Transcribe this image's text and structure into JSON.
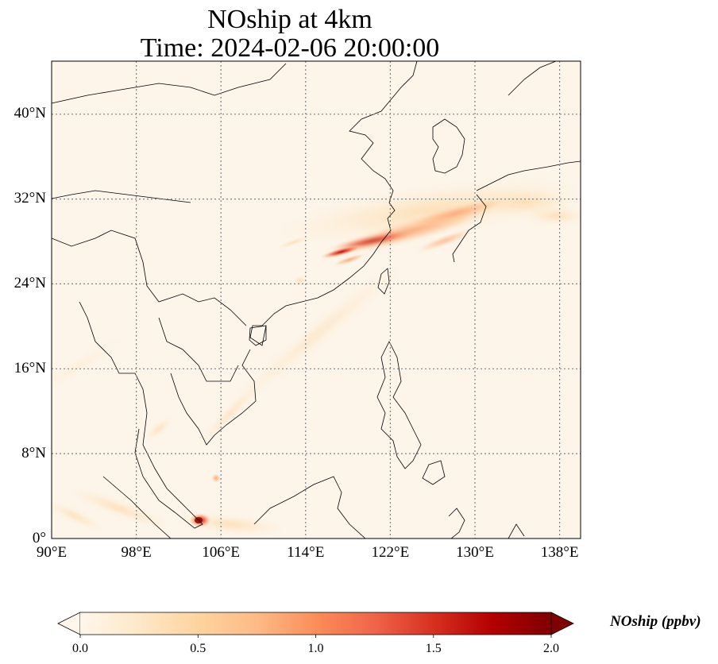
{
  "title": {
    "line1": "NOship at 4km",
    "line2": "Time: 2024-02-06 20:00:00"
  },
  "axes": {
    "lon_ticks": [
      "90°E",
      "98°E",
      "106°E",
      "114°E",
      "122°E",
      "130°E",
      "138°E"
    ],
    "lat_ticks": [
      "0°",
      "8°N",
      "16°N",
      "24°N",
      "32°N",
      "40°N"
    ],
    "lon_range": [
      90,
      140
    ],
    "lat_range": [
      0,
      45
    ],
    "gridlines": "dotted"
  },
  "colorbar": {
    "label": "NOship (ppbv)",
    "ticks": [
      "0.0",
      "0.5",
      "1.0",
      "1.5",
      "2.0"
    ],
    "range": [
      0,
      2.0
    ],
    "colormap": "OrRd",
    "extend": "both",
    "colors": [
      "#fff7ec",
      "#fee8c8",
      "#fdd49e",
      "#fdbb84",
      "#fc8d59",
      "#ef6548",
      "#d7301f",
      "#b30000",
      "#7f0000"
    ]
  },
  "map_features": {
    "background": "#fdf5ea",
    "coastline_color": "#000000",
    "grid_color": "#808080"
  }
}
